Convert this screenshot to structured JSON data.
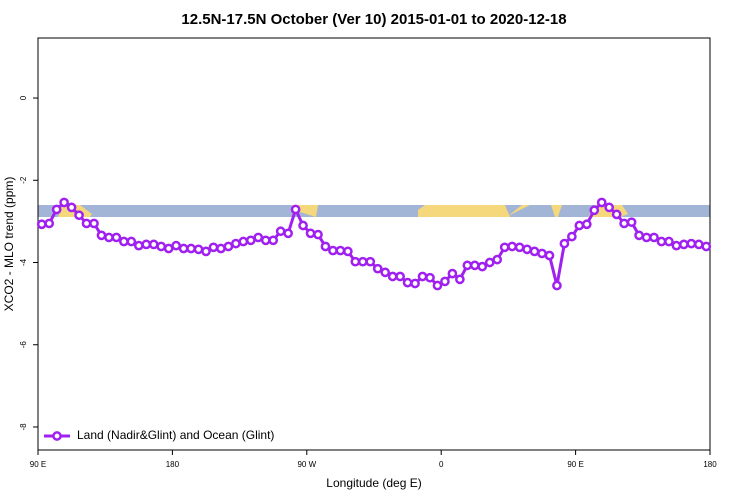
{
  "chart_data": {
    "type": "line",
    "title": "12.5N-17.5N October (Ver 10)   2015-01-01 to 2020-12-18",
    "x_label": "Longitude (deg E)",
    "y_label": "XCO2 - MLO trend (ppm)",
    "legend_position": "bottomleft",
    "grid": false,
    "xlim": [
      90,
      540
    ],
    "xticks": [
      {
        "value": 90,
        "label": "90 E"
      },
      {
        "value": 180,
        "label": "180"
      },
      {
        "value": 270,
        "label": "90 W"
      },
      {
        "value": 360,
        "label": "0"
      },
      {
        "value": 450,
        "label": "90 E"
      },
      {
        "value": 540,
        "label": "180"
      }
    ],
    "ylim": [
      -8.56,
      1.46
    ],
    "yticks": [
      0,
      -2,
      -4,
      -6,
      -8
    ],
    "x": [
      92.5,
      97.5,
      102.5,
      107.5,
      112.5,
      117.5,
      122.5,
      127.5,
      132.5,
      137.5,
      142.5,
      147.5,
      152.5,
      157.5,
      162.5,
      167.5,
      172.5,
      177.5,
      182.5,
      187.5,
      192.5,
      197.5,
      202.5,
      207.5,
      212.5,
      217.5,
      222.5,
      227.5,
      232.5,
      237.5,
      242.5,
      247.5,
      252.5,
      257.5,
      262.5,
      267.5,
      272.5,
      277.5,
      282.5,
      287.5,
      292.5,
      297.5,
      302.5,
      307.5,
      312.5,
      317.5,
      322.5,
      327.5,
      332.5,
      337.5,
      342.5,
      347.5,
      352.5,
      357.5,
      362.5,
      367.5,
      372.5,
      377.5,
      382.5,
      387.5,
      392.5,
      397.5,
      402.5,
      407.5,
      412.5,
      417.5,
      422.5,
      427.5,
      432.5,
      437.5,
      442.5,
      447.5,
      452.5,
      457.5,
      462.5,
      467.5,
      472.5,
      477.5,
      482.5,
      487.5,
      492.5,
      497.5,
      502.5,
      507.5,
      512.5,
      517.5,
      522.5,
      527.5,
      532.5,
      537.5
    ],
    "series": [
      {
        "name": "Land (Nadir&Glint) and Ocean (Glint)",
        "color": "#a020f0",
        "values": [
          -3.07,
          -3.05,
          -2.71,
          -2.54,
          -2.66,
          -2.85,
          -3.05,
          -3.05,
          -3.34,
          -3.39,
          -3.39,
          -3.49,
          -3.49,
          -3.59,
          -3.56,
          -3.56,
          -3.61,
          -3.66,
          -3.59,
          -3.66,
          -3.66,
          -3.68,
          -3.73,
          -3.63,
          -3.66,
          -3.61,
          -3.54,
          -3.49,
          -3.46,
          -3.39,
          -3.46,
          -3.46,
          -3.24,
          -3.29,
          -2.71,
          -3.1,
          -3.29,
          -3.32,
          -3.61,
          -3.71,
          -3.71,
          -3.73,
          -3.98,
          -3.98,
          -3.98,
          -4.15,
          -4.24,
          -4.34,
          -4.34,
          -4.49,
          -4.51,
          -4.34,
          -4.37,
          -4.56,
          -4.46,
          -4.27,
          -4.41,
          -4.07,
          -4.07,
          -4.1,
          -4.0,
          -3.93,
          -3.63,
          -3.61,
          -3.63,
          -3.68,
          -3.73,
          -3.78,
          -3.83,
          -4.56,
          -3.54,
          -3.37,
          -3.1,
          -3.07,
          -2.73,
          -2.54,
          -2.66,
          -2.83,
          -3.05,
          -3.02,
          -3.34,
          -3.39,
          -3.39,
          -3.49,
          -3.49,
          -3.59,
          -3.56,
          -3.54,
          -3.56,
          -3.61
        ]
      }
    ]
  }
}
